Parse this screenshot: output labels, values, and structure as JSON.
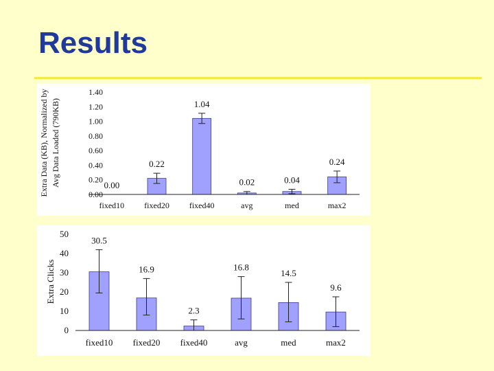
{
  "slide": {
    "title": "Results"
  },
  "chart_data": [
    {
      "type": "bar",
      "ylabel_lines": [
        "Extra Data (KB), Normalized by",
        "Avg Data Loaded (790KB)"
      ],
      "categories": [
        "fixed10",
        "fixed20",
        "fixed40",
        "avg",
        "med",
        "max2"
      ],
      "values": [
        0.0,
        0.22,
        1.04,
        0.02,
        0.04,
        0.24
      ],
      "value_labels": [
        "0.00",
        "0.22",
        "1.04",
        "0.02",
        "0.04",
        "0.24"
      ],
      "error_low": [
        0.0,
        0.15,
        0.97,
        0.0,
        0.01,
        0.16
      ],
      "error_high": [
        0.0,
        0.29,
        1.11,
        0.04,
        0.07,
        0.32
      ],
      "yticks": [
        "0.00",
        "0.20",
        "0.40",
        "0.60",
        "0.80",
        "1.00",
        "1.20",
        "1.40"
      ],
      "ylim": [
        0,
        1.4
      ],
      "bar_color": "#a0a0ff",
      "grid": false
    },
    {
      "type": "bar",
      "ylabel": "Extra Clicks",
      "categories": [
        "fixed10",
        "fixed20",
        "fixed40",
        "avg",
        "med",
        "max2"
      ],
      "values": [
        30.5,
        16.9,
        2.3,
        16.8,
        14.5,
        9.6
      ],
      "value_labels": [
        "30.5",
        "16.9",
        "2.3",
        "16.8",
        "14.5",
        "9.6"
      ],
      "error_low": [
        19.5,
        8.0,
        0.0,
        6.0,
        4.5,
        2.0
      ],
      "error_high": [
        42.0,
        27.0,
        5.5,
        28.0,
        25.0,
        17.5
      ],
      "yticks": [
        "0",
        "10",
        "20",
        "30",
        "40",
        "50"
      ],
      "ylim": [
        0,
        50
      ],
      "bar_color": "#a0a0ff",
      "grid": false
    }
  ]
}
